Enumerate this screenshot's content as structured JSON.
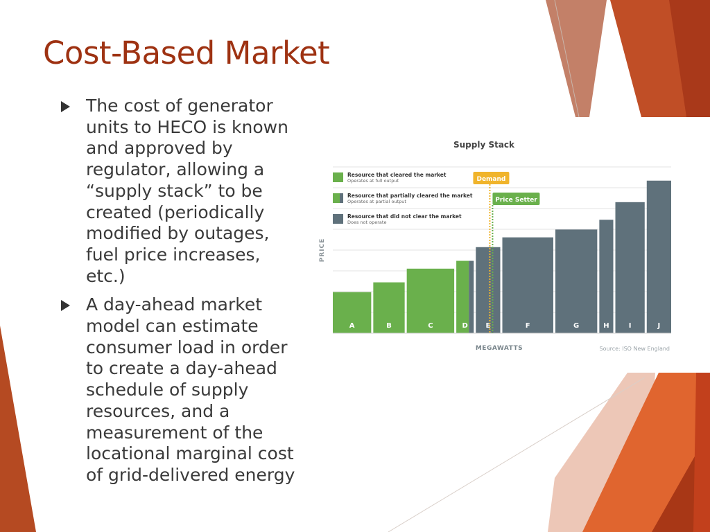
{
  "slide": {
    "title": "Cost-Based Market",
    "bullets": [
      "The cost of generator units to HECO is known and approved by regulator, allowing a “supply stack” to be created (periodically modified by outages, fuel price increases, etc.)",
      "A day-ahead market model can estimate consumer load in order to create a day-ahead schedule of supply resources, and a measurement of the locational marginal cost of grid-delivered energy"
    ],
    "colors": {
      "title": "#9e3212",
      "accent_dark": "#a43b19",
      "accent_orange": "#d55a2a"
    },
    "icon": "triangle-bullet-icon"
  },
  "chart_data": {
    "type": "bar",
    "title": "Supply Stack",
    "xlabel": "MEGAWATTS",
    "ylabel": "PRICE",
    "source": "Source: ISO New England",
    "categories": [
      "A",
      "B",
      "C",
      "D",
      "E",
      "F",
      "G",
      "H",
      "I",
      "J"
    ],
    "widths": [
      55,
      45,
      68,
      25,
      35,
      73,
      60,
      20,
      42,
      35
    ],
    "values": [
      21,
      26,
      33,
      37,
      44,
      49,
      53,
      58,
      67,
      78
    ],
    "status": [
      "cleared",
      "cleared",
      "cleared",
      "partial",
      "not-cleared",
      "not-cleared",
      "not-cleared",
      "not-cleared",
      "not-cleared",
      "not-cleared"
    ],
    "ylim": [
      0,
      85
    ],
    "grid": true,
    "legend_position": "top-left",
    "legend": [
      {
        "key": "cleared",
        "label": "Resource that cleared the market",
        "sublabel": "Operates at full output",
        "color": "#6ab04c"
      },
      {
        "key": "partial",
        "label": "Resource that partially cleared the market",
        "sublabel": "Operates at partial output",
        "color": "#5f717b"
      },
      {
        "key": "not-cleared",
        "label": "Resource that did not clear the market",
        "sublabel": "Does not operate",
        "color": "#5f717b"
      }
    ],
    "annotations": [
      {
        "label": "Demand",
        "color": "#f0b42c"
      },
      {
        "label": "Price Setter",
        "color": "#6ab04c"
      }
    ],
    "demand_mw": 218
  }
}
